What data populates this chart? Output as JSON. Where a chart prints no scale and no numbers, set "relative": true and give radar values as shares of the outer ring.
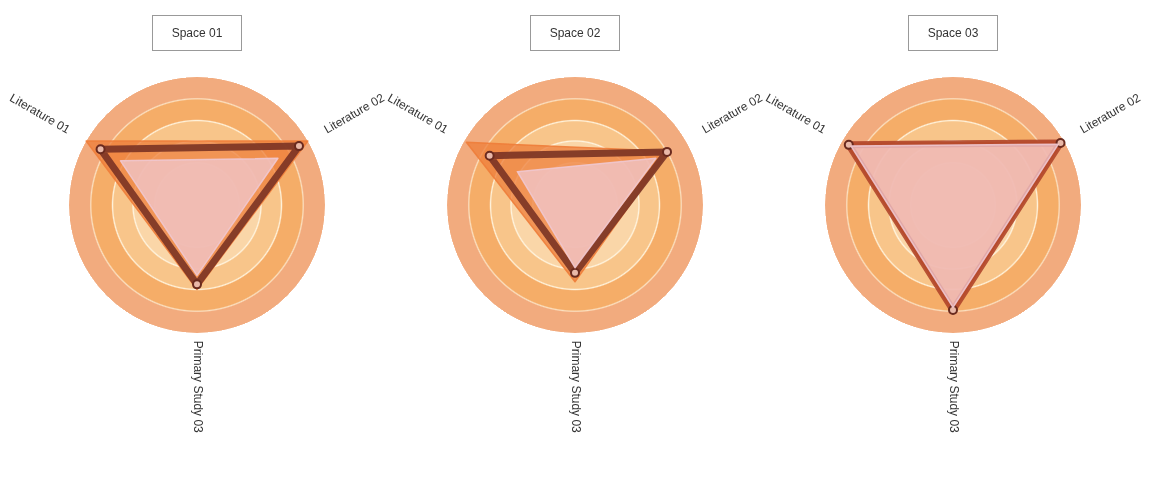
{
  "chart_data": [
    {
      "type": "radar",
      "title": "Space 01",
      "relative": true,
      "categories": [
        "Literature 02",
        "Primary Study 03",
        "Literature 01"
      ],
      "series": [
        {
          "color": "#ee7d3a",
          "marker": "none",
          "values": [
            1.0,
            0.66,
            1.0
          ]
        },
        {
          "color": "#7a3324",
          "marker": "circle",
          "values": [
            0.92,
            0.62,
            0.87
          ]
        },
        {
          "color": "#f0c8d0",
          "marker": "none",
          "values": [
            0.73,
            0.55,
            0.69
          ]
        }
      ]
    },
    {
      "type": "radar",
      "title": "Space 02",
      "relative": true,
      "categories": [
        "Literature 02",
        "Primary Study 03",
        "Literature 01"
      ],
      "series": [
        {
          "color": "#ee7d3a",
          "marker": "none",
          "values": [
            0.84,
            0.6,
            0.98
          ]
        },
        {
          "color": "#7a3324",
          "marker": "circle",
          "values": [
            0.83,
            0.53,
            0.77
          ]
        },
        {
          "color": "#f0c8d0",
          "marker": "none",
          "values": [
            0.73,
            0.49,
            0.52
          ]
        }
      ]
    },
    {
      "type": "radar",
      "title": "Space 03",
      "relative": true,
      "categories": [
        "Literature 02",
        "Primary Study 03",
        "Literature 01"
      ],
      "series": [
        {
          "color": "#ee7d3a",
          "marker": "none",
          "values": [
            0.98,
            0.83,
            0.96
          ]
        },
        {
          "color": "#b0452a",
          "marker": "circle",
          "values": [
            0.97,
            0.82,
            0.94
          ]
        },
        {
          "color": "#f0c8d0",
          "marker": "none",
          "values": [
            0.95,
            0.8,
            0.92
          ]
        }
      ]
    }
  ]
}
